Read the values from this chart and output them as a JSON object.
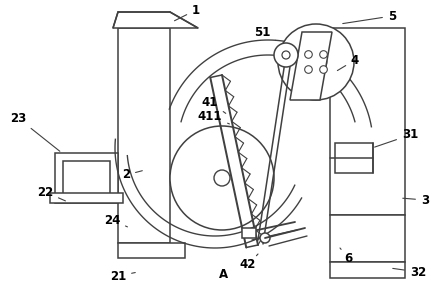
{
  "bg_color": "#ffffff",
  "lc": "#404040",
  "lw": 1.1,
  "figsize": [
    4.43,
    2.93
  ],
  "dpi": 100
}
